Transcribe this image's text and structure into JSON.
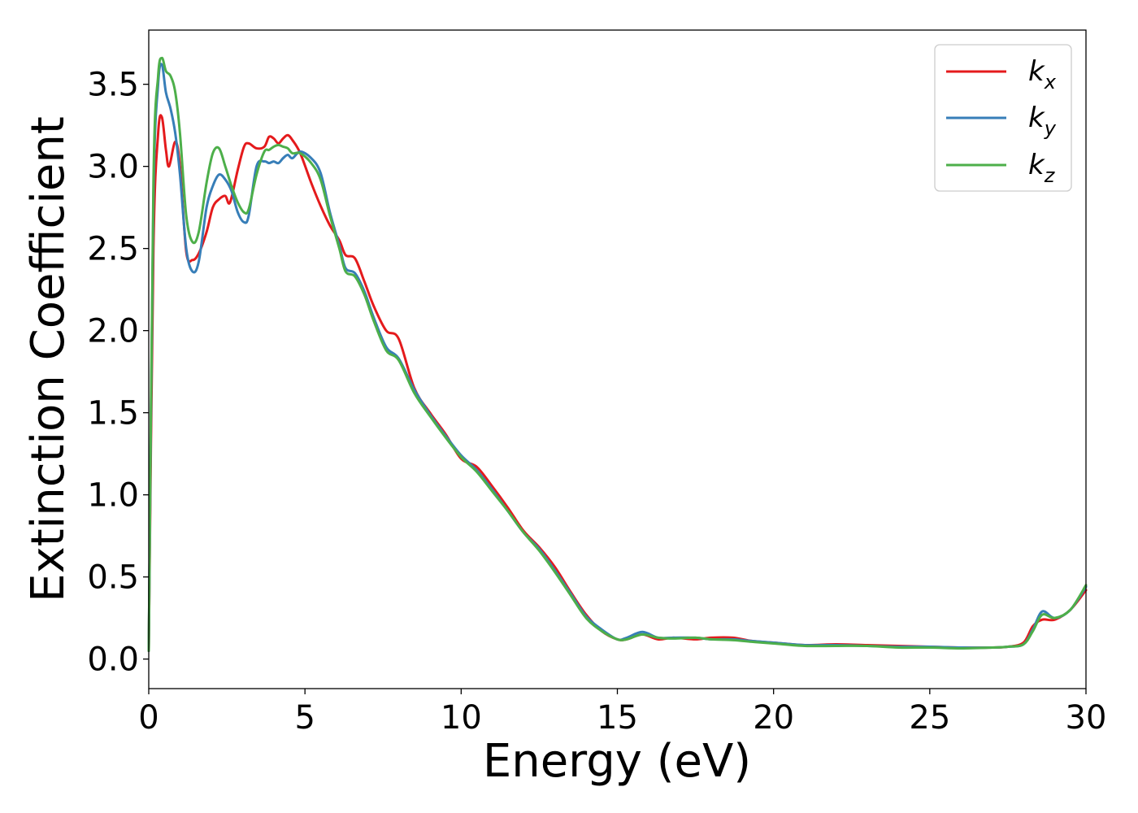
{
  "chart_data": {
    "type": "line",
    "title": "",
    "xlabel": "Energy (eV)",
    "ylabel": "Extinction Coefficient",
    "xlim": [
      0,
      30
    ],
    "ylim": [
      -0.18,
      3.83
    ],
    "xticks": [
      0,
      5,
      10,
      15,
      20,
      25,
      30
    ],
    "xtick_labels": [
      "0",
      "5",
      "10",
      "15",
      "20",
      "25",
      "30"
    ],
    "yticks": [
      0.0,
      0.5,
      1.0,
      1.5,
      2.0,
      2.5,
      3.0,
      3.5
    ],
    "ytick_labels": [
      "0.0",
      "0.5",
      "1.0",
      "1.5",
      "2.0",
      "2.5",
      "3.0",
      "3.5"
    ],
    "grid": false,
    "legend": {
      "placement": "top-right",
      "entries": [
        {
          "base": "k",
          "sub": "x",
          "color": "#e41a1c"
        },
        {
          "base": "k",
          "sub": "y",
          "color": "#377eb8"
        },
        {
          "base": "k",
          "sub": "z",
          "color": "#4daf4a"
        }
      ]
    },
    "series": [
      {
        "name": "kx",
        "color": "#e41a1c",
        "x": [
          0,
          0.15,
          0.3,
          0.42,
          0.55,
          0.65,
          0.85,
          1.0,
          1.2,
          1.4,
          1.6,
          1.85,
          2.05,
          2.25,
          2.45,
          2.6,
          2.85,
          3.05,
          3.2,
          3.45,
          3.7,
          3.85,
          4.0,
          4.15,
          4.3,
          4.45,
          4.6,
          4.85,
          5.2,
          5.5,
          5.8,
          6.1,
          6.3,
          6.6,
          6.9,
          7.2,
          7.6,
          8.0,
          8.5,
          9.0,
          9.5,
          10.0,
          10.5,
          11.0,
          11.5,
          12.0,
          12.5,
          13.0,
          13.5,
          14.0,
          14.5,
          15.0,
          15.3,
          15.8,
          16.3,
          16.8,
          17.5,
          18.0,
          18.7,
          19.3,
          20.0,
          21.0,
          22.0,
          23.0,
          24.0,
          25.0,
          26.0,
          27.0,
          27.5,
          28.0,
          28.3,
          28.6,
          29.0,
          29.5,
          30.0
        ],
        "y": [
          0.05,
          2.5,
          3.2,
          3.3,
          3.1,
          3.0,
          3.15,
          3.0,
          2.48,
          2.43,
          2.47,
          2.6,
          2.75,
          2.8,
          2.82,
          2.78,
          2.98,
          3.12,
          3.14,
          3.11,
          3.12,
          3.18,
          3.17,
          3.14,
          3.17,
          3.19,
          3.16,
          3.08,
          2.9,
          2.76,
          2.64,
          2.55,
          2.46,
          2.44,
          2.3,
          2.15,
          2.0,
          1.95,
          1.65,
          1.5,
          1.37,
          1.22,
          1.17,
          1.05,
          0.92,
          0.78,
          0.68,
          0.56,
          0.41,
          0.27,
          0.17,
          0.12,
          0.12,
          0.15,
          0.12,
          0.13,
          0.12,
          0.13,
          0.13,
          0.11,
          0.1,
          0.085,
          0.09,
          0.085,
          0.08,
          0.075,
          0.07,
          0.07,
          0.075,
          0.1,
          0.2,
          0.24,
          0.24,
          0.3,
          0.42
        ]
      },
      {
        "name": "ky",
        "color": "#377eb8",
        "x": [
          0,
          0.15,
          0.3,
          0.42,
          0.55,
          0.7,
          0.85,
          1.0,
          1.2,
          1.4,
          1.6,
          1.85,
          2.05,
          2.25,
          2.45,
          2.65,
          2.85,
          3.05,
          3.2,
          3.45,
          3.7,
          3.85,
          4.0,
          4.15,
          4.3,
          4.45,
          4.6,
          4.85,
          5.2,
          5.5,
          5.8,
          6.1,
          6.3,
          6.6,
          6.9,
          7.2,
          7.6,
          8.0,
          8.5,
          9.0,
          9.5,
          10.0,
          10.5,
          11.0,
          11.5,
          12.0,
          12.5,
          13.0,
          13.5,
          14.0,
          14.5,
          15.0,
          15.3,
          15.8,
          16.3,
          16.8,
          17.5,
          18.0,
          18.7,
          19.3,
          20.0,
          21.0,
          22.0,
          23.0,
          24.0,
          25.0,
          26.0,
          27.0,
          27.5,
          28.0,
          28.3,
          28.6,
          29.0,
          29.5,
          30.0
        ],
        "y": [
          0.05,
          2.8,
          3.5,
          3.62,
          3.45,
          3.35,
          3.2,
          2.95,
          2.5,
          2.36,
          2.42,
          2.75,
          2.88,
          2.95,
          2.92,
          2.85,
          2.72,
          2.66,
          2.7,
          3.0,
          3.03,
          3.02,
          3.03,
          3.02,
          3.05,
          3.07,
          3.05,
          3.09,
          3.05,
          2.96,
          2.72,
          2.52,
          2.38,
          2.35,
          2.24,
          2.08,
          1.9,
          1.83,
          1.64,
          1.49,
          1.36,
          1.24,
          1.15,
          1.03,
          0.9,
          0.77,
          0.67,
          0.54,
          0.4,
          0.26,
          0.18,
          0.12,
          0.13,
          0.165,
          0.13,
          0.13,
          0.13,
          0.12,
          0.12,
          0.11,
          0.1,
          0.085,
          0.085,
          0.08,
          0.075,
          0.075,
          0.07,
          0.07,
          0.075,
          0.09,
          0.18,
          0.29,
          0.25,
          0.3,
          0.44
        ]
      },
      {
        "name": "kz",
        "color": "#4daf4a",
        "x": [
          0,
          0.15,
          0.3,
          0.42,
          0.55,
          0.7,
          0.85,
          1.0,
          1.2,
          1.4,
          1.6,
          1.85,
          2.05,
          2.25,
          2.45,
          2.65,
          2.85,
          3.05,
          3.2,
          3.45,
          3.7,
          3.85,
          4.0,
          4.15,
          4.3,
          4.45,
          4.6,
          4.85,
          5.2,
          5.5,
          5.8,
          6.1,
          6.3,
          6.6,
          6.9,
          7.2,
          7.6,
          8.0,
          8.5,
          9.0,
          9.5,
          10.0,
          10.5,
          11.0,
          11.5,
          12.0,
          12.5,
          13.0,
          13.5,
          14.0,
          14.5,
          15.0,
          15.3,
          15.8,
          16.3,
          16.8,
          17.5,
          18.0,
          18.7,
          19.3,
          20.0,
          21.0,
          22.0,
          23.0,
          24.0,
          25.0,
          26.0,
          27.0,
          27.5,
          28.0,
          28.3,
          28.6,
          29.0,
          29.5,
          30.0
        ],
        "y": [
          0.05,
          2.9,
          3.55,
          3.66,
          3.58,
          3.55,
          3.45,
          3.2,
          2.7,
          2.54,
          2.6,
          2.9,
          3.08,
          3.11,
          3.0,
          2.88,
          2.78,
          2.72,
          2.74,
          2.95,
          3.09,
          3.1,
          3.12,
          3.13,
          3.12,
          3.11,
          3.08,
          3.08,
          3.02,
          2.92,
          2.7,
          2.5,
          2.36,
          2.33,
          2.22,
          2.06,
          1.88,
          1.82,
          1.62,
          1.48,
          1.35,
          1.23,
          1.14,
          1.02,
          0.9,
          0.77,
          0.66,
          0.53,
          0.39,
          0.25,
          0.17,
          0.12,
          0.12,
          0.15,
          0.13,
          0.125,
          0.13,
          0.12,
          0.115,
          0.105,
          0.095,
          0.08,
          0.08,
          0.08,
          0.07,
          0.07,
          0.065,
          0.07,
          0.075,
          0.09,
          0.17,
          0.27,
          0.25,
          0.3,
          0.45
        ]
      }
    ]
  }
}
